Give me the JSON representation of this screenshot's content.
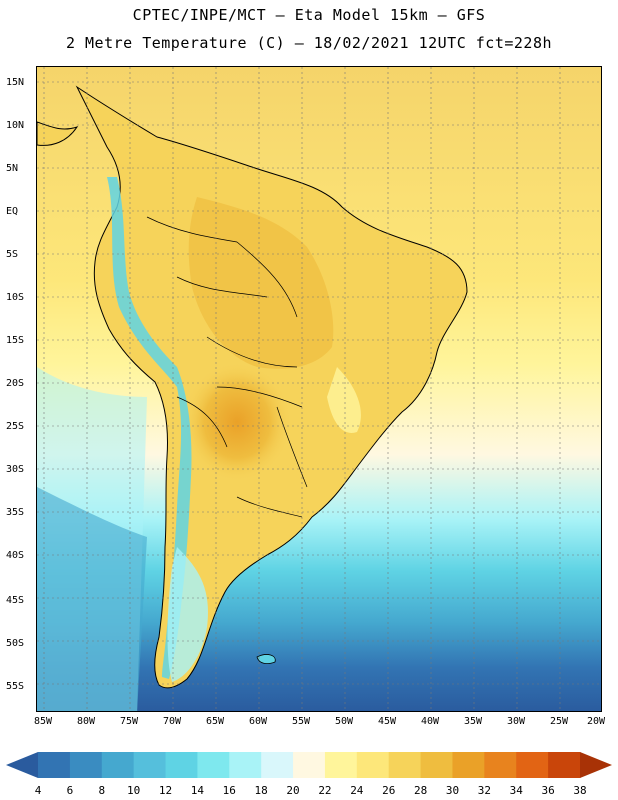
{
  "title_line1": "CPTEC/INPE/MCT –  Eta Model 15km – GFS",
  "title_line2": "2 Metre Temperature (C) – 18/02/2021 12UTC fct=228h",
  "lat_labels": [
    "15N",
    "10N",
    "5N",
    "EQ",
    "5S",
    "10S",
    "15S",
    "20S",
    "25S",
    "30S",
    "35S",
    "40S",
    "45S",
    "50S",
    "55S"
  ],
  "lon_labels": [
    "85W",
    "80W",
    "75W",
    "70W",
    "65W",
    "60W",
    "55W",
    "50W",
    "45W",
    "40W",
    "35W",
    "30W",
    "25W",
    "20W"
  ],
  "colorbar": {
    "labels": [
      "4",
      "6",
      "8",
      "10",
      "12",
      "14",
      "16",
      "18",
      "20",
      "22",
      "24",
      "26",
      "28",
      "30",
      "32",
      "34",
      "36",
      "38"
    ],
    "colors": [
      "#2a5b9e",
      "#3274b3",
      "#3a8cc1",
      "#45a8cf",
      "#55bfdc",
      "#5fd3e4",
      "#7ee8ee",
      "#a9f3f7",
      "#d9f7fb",
      "#fff8e1",
      "#fff59b",
      "#fde77a",
      "#f6d35a",
      "#efbd3f",
      "#eaa128",
      "#e8831e",
      "#e26414",
      "#c9450a",
      "#a83206"
    ]
  },
  "icons": {
    "colorbar_left_arrow": "triangle-left",
    "colorbar_right_arrow": "triangle-right"
  }
}
